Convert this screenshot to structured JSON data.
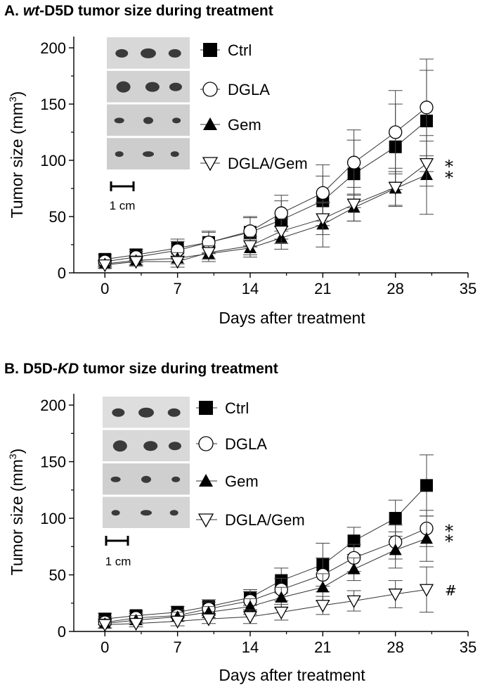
{
  "chart_data": [
    {
      "type": "line",
      "panel_label": "A.",
      "title_italic": "wt",
      "title_rest": "-D5D tumor size during treatment",
      "xlabel": "Days after treatment",
      "ylabel": "Tumor size (mm",
      "ylabel_sup": "3",
      "ylabel_close": ")",
      "xlim": [
        -3,
        35
      ],
      "ylim": [
        0,
        210
      ],
      "xticks": [
        0,
        7,
        14,
        21,
        28,
        35
      ],
      "yticks": [
        0,
        50,
        100,
        150,
        200
      ],
      "scale_bar_label": "1 cm",
      "x": [
        0,
        3,
        7,
        10,
        14,
        17,
        21,
        24,
        28,
        31
      ],
      "series": [
        {
          "name": "Ctrl",
          "marker": "square",
          "values": [
            12,
            16,
            22,
            27,
            36,
            47,
            64,
            88,
            112,
            135
          ],
          "errors": [
            4,
            5,
            8,
            9,
            13,
            17,
            22,
            30,
            38,
            45
          ]
        },
        {
          "name": "DGLA",
          "marker": "circle",
          "values": [
            10,
            14,
            20,
            27,
            37,
            53,
            71,
            98,
            125,
            147
          ],
          "errors": [
            4,
            5,
            8,
            10,
            13,
            16,
            25,
            29,
            37,
            43
          ]
        },
        {
          "name": "Gem",
          "marker": "triangle-up",
          "values": [
            8,
            11,
            13,
            17,
            22,
            31,
            43,
            58,
            75,
            87
          ],
          "errors": [
            3,
            4,
            5,
            7,
            8,
            10,
            20,
            12,
            15,
            35
          ]
        },
        {
          "name": "DGLA/Gem",
          "marker": "triangle-down",
          "values": [
            7,
            10,
            10,
            18,
            24,
            37,
            48,
            61,
            76,
            97
          ],
          "errors": [
            3,
            4,
            5,
            6,
            8,
            11,
            14,
            15,
            17,
            20
          ]
        }
      ],
      "annotations": [
        {
          "text": "*",
          "series": "DGLA/Gem"
        },
        {
          "text": "*",
          "series": "Gem"
        }
      ]
    },
    {
      "type": "line",
      "panel_label": "B.",
      "title_prefix": "D5D-",
      "title_italic": "KD",
      "title_rest": " tumor size during treatment",
      "xlabel": "Days after treatment",
      "ylabel": "Tumor size (mm",
      "ylabel_sup": "3",
      "ylabel_close": ")",
      "xlim": [
        -3,
        35
      ],
      "ylim": [
        0,
        210
      ],
      "xticks": [
        0,
        7,
        14,
        21,
        28,
        35
      ],
      "yticks": [
        0,
        50,
        100,
        150,
        200
      ],
      "scale_bar_label": "1 cm",
      "x": [
        0,
        3,
        7,
        10,
        14,
        17,
        21,
        24,
        28,
        31
      ],
      "series": [
        {
          "name": "Ctrl",
          "marker": "square",
          "values": [
            11,
            14,
            17,
            22,
            30,
            45,
            59,
            80,
            100,
            129
          ],
          "errors": [
            5,
            4,
            5,
            6,
            7,
            11,
            19,
            12,
            16,
            27
          ]
        },
        {
          "name": "DGLA",
          "marker": "circle",
          "values": [
            8,
            12,
            14,
            20,
            27,
            37,
            50,
            65,
            79,
            91
          ],
          "errors": [
            5,
            4,
            5,
            6,
            8,
            10,
            15,
            12,
            15,
            16
          ]
        },
        {
          "name": "Gem",
          "marker": "triangle-up",
          "values": [
            7,
            10,
            13,
            17,
            22,
            30,
            39,
            55,
            72,
            82
          ],
          "errors": [
            4,
            4,
            4,
            5,
            7,
            9,
            12,
            10,
            16,
            20
          ]
        },
        {
          "name": "DGLA/Gem",
          "marker": "triangle-down",
          "values": [
            6,
            7,
            9,
            11,
            13,
            17,
            23,
            27,
            33,
            37
          ],
          "errors": [
            3,
            3,
            4,
            4,
            6,
            7,
            8,
            9,
            12,
            20
          ]
        }
      ],
      "annotations": [
        {
          "text": "*",
          "series": "DGLA"
        },
        {
          "text": "*",
          "series": "Gem"
        },
        {
          "text": "#",
          "series": "DGLA/Gem"
        }
      ]
    }
  ]
}
